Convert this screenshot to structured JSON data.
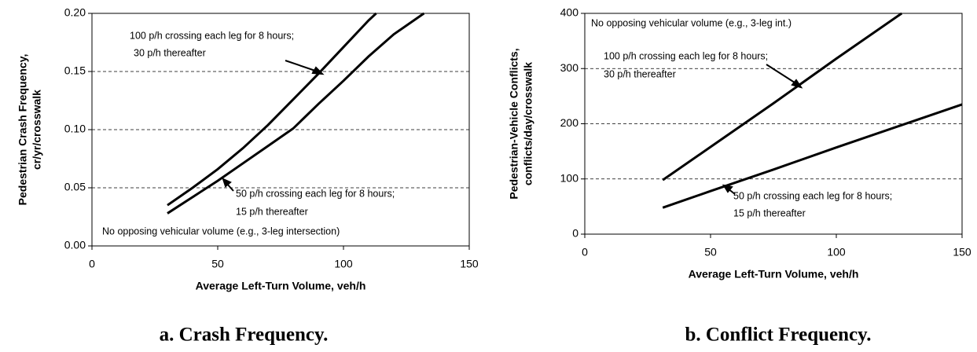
{
  "chart_data": [
    {
      "type": "line",
      "caption": "a. Crash Frequency.",
      "xlabel": "Average Left-Turn Volume, veh/h",
      "ylabel": [
        "Pedestrian Crash Frequency,",
        "cr/yr/crosswalk"
      ],
      "xlim": [
        0,
        150
      ],
      "xticks": [
        0,
        50,
        100,
        150
      ],
      "ylim": [
        0,
        0.2
      ],
      "yticks": [
        {
          "value": 0,
          "label": "0.00"
        },
        {
          "value": 0.05,
          "label": "0.05"
        },
        {
          "value": 0.1,
          "label": "0.10"
        },
        {
          "value": 0.15,
          "label": "0.15"
        },
        {
          "value": 0.2,
          "label": "0.20"
        }
      ],
      "grid": true,
      "series": [
        {
          "color": "#000000",
          "x": [
            30,
            40,
            50,
            60,
            70,
            80,
            90,
            100,
            110,
            113
          ],
          "values": [
            0.035,
            0.05,
            0.066,
            0.084,
            0.104,
            0.126,
            0.148,
            0.171,
            0.194,
            0.2
          ]
        },
        {
          "color": "#000000",
          "x": [
            30,
            40,
            50,
            60,
            70,
            80,
            90,
            100,
            110,
            120,
            132
          ],
          "values": [
            0.028,
            0.042,
            0.056,
            0.071,
            0.086,
            0.101,
            0.122,
            0.142,
            0.163,
            0.182,
            0.2
          ]
        }
      ],
      "annotations": [
        [
          "100 p/h crossing each leg for 8 hours;",
          "30 p/h thereafter"
        ],
        [
          "50 p/h crossing each leg for 8 hours;",
          "15 p/h thereafter"
        ],
        [
          "No opposing vehicular volume (e.g., 3-leg intersection)"
        ]
      ]
    },
    {
      "type": "line",
      "caption": "b. Conflict Frequency.",
      "xlabel": "Average Left-Turn Volume, veh/h",
      "ylabel": [
        "Pedestrian-Vehicle Conflicts,",
        "conflicts/day/crosswalk"
      ],
      "xlim": [
        0,
        150
      ],
      "xticks": [
        0,
        50,
        100,
        150
      ],
      "ylim": [
        0,
        400
      ],
      "yticks": [
        0,
        100,
        200,
        300,
        400
      ],
      "grid": true,
      "series": [
        {
          "color": "#000000",
          "x": [
            31,
            50,
            75,
            100,
            126
          ],
          "values": [
            98,
            158,
            237,
            318,
            400
          ]
        },
        {
          "color": "#000000",
          "x": [
            31,
            50,
            75,
            100,
            125,
            150
          ],
          "values": [
            48,
            78,
            117,
            157,
            196,
            235
          ]
        }
      ],
      "annotations": [
        [
          "No opposing vehicular volume (e.g., 3-leg int.)"
        ],
        [
          "100 p/h crossing each leg for 8 hours;",
          "30 p/h thereafter"
        ],
        [
          "50 p/h crossing each leg for 8 hours;",
          "15 p/h thereafter"
        ]
      ]
    }
  ]
}
